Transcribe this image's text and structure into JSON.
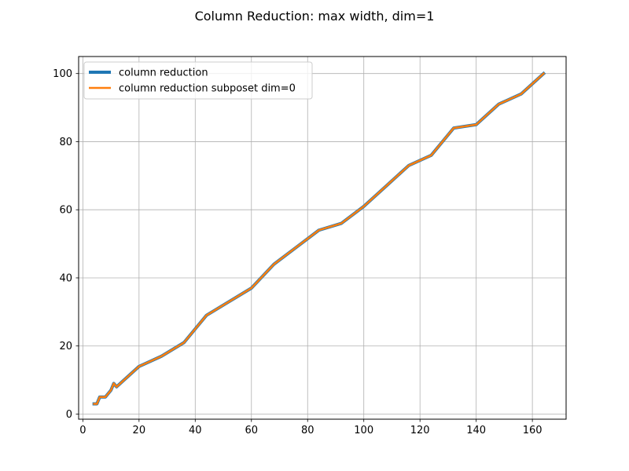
{
  "chart_data": {
    "type": "line",
    "title": "Column Reduction: max width, dim=1",
    "xlabel": "",
    "ylabel": "",
    "xlim": [
      -1.5,
      172
    ],
    "ylim": [
      -1.5,
      105
    ],
    "xticks": [
      0,
      20,
      40,
      60,
      80,
      100,
      120,
      140,
      160
    ],
    "yticks": [
      0,
      20,
      40,
      60,
      80,
      100
    ],
    "grid": true,
    "legend_position": "top-left",
    "series": [
      {
        "name": "column reduction",
        "color": "#1f77b4",
        "x": [
          4,
          5,
          6,
          8,
          10,
          11,
          12,
          20,
          28,
          36,
          44,
          52,
          60,
          68,
          76,
          84,
          92,
          100,
          108,
          116,
          124,
          132,
          140,
          148,
          156,
          164
        ],
        "y": [
          3,
          3,
          5,
          5,
          7,
          9,
          8,
          14,
          17,
          21,
          29,
          33,
          37,
          44,
          49,
          54,
          56,
          61,
          67,
          73,
          76,
          84,
          85,
          91,
          94,
          100
        ]
      },
      {
        "name": "column reduction subposet dim=0",
        "color": "#ff7f0e",
        "x": [
          4,
          5,
          6,
          8,
          10,
          11,
          12,
          20,
          28,
          36,
          44,
          52,
          60,
          68,
          76,
          84,
          92,
          100,
          108,
          116,
          124,
          132,
          140,
          148,
          156,
          164
        ],
        "y": [
          3,
          3,
          5,
          5,
          7,
          9,
          8,
          14,
          17,
          21,
          29,
          33,
          37,
          44,
          49,
          54,
          56,
          61,
          67,
          73,
          76,
          84,
          85,
          91,
          94,
          100
        ]
      }
    ]
  }
}
